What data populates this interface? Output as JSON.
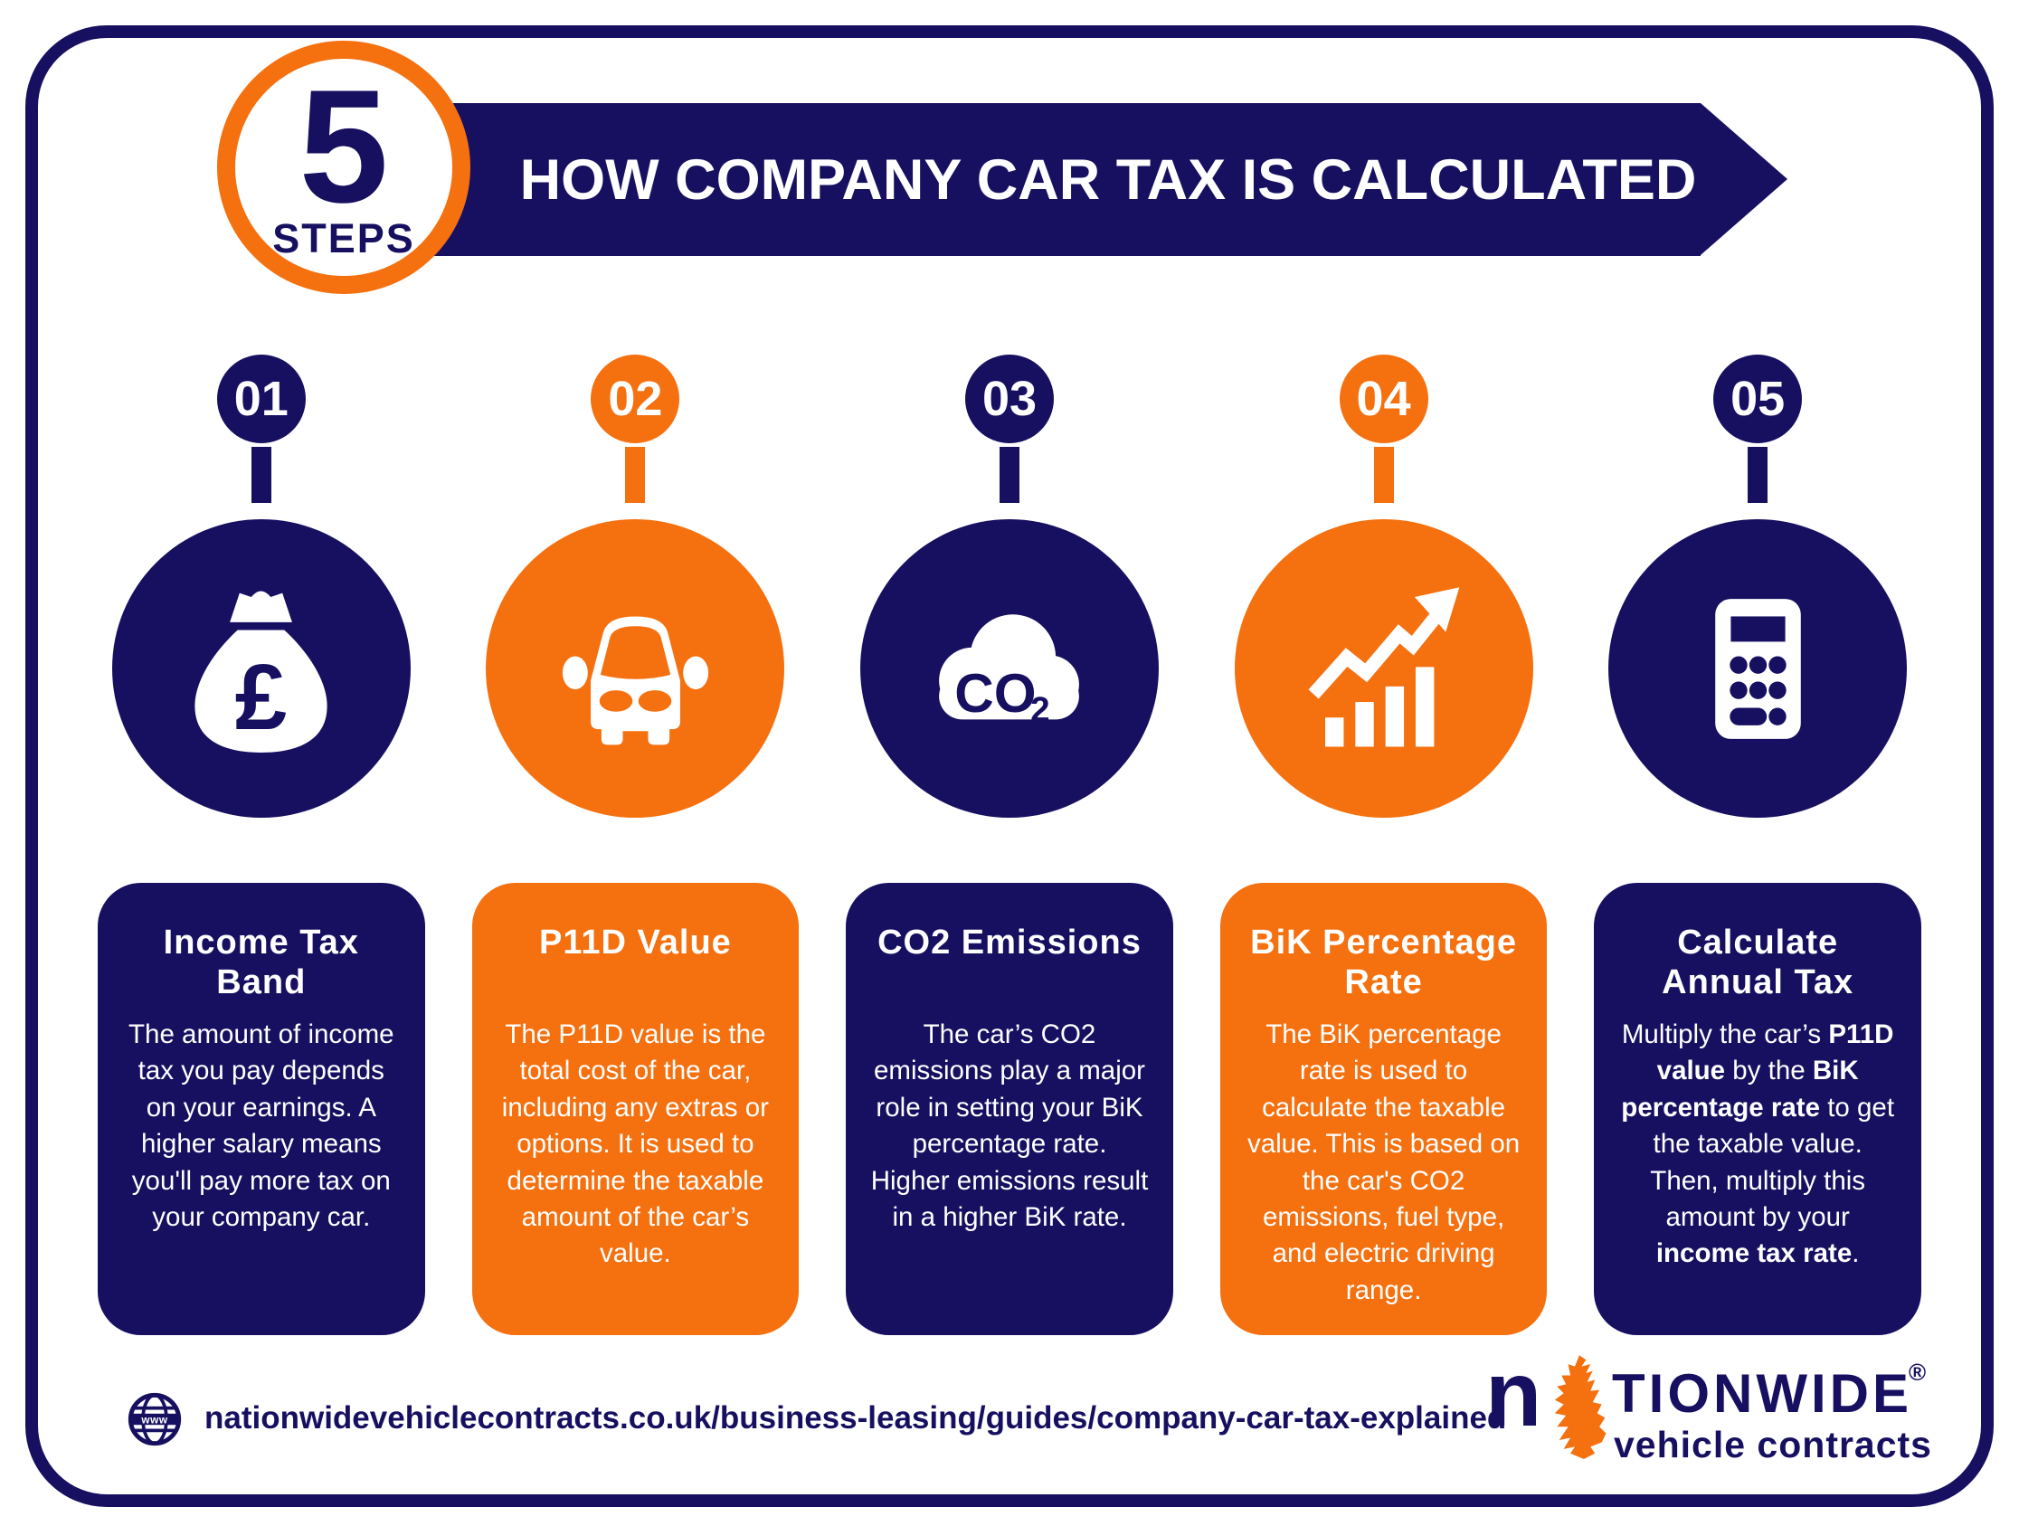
{
  "colors": {
    "navy": "#171061",
    "orange": "#F5700F",
    "white": "#FFFFFF"
  },
  "header": {
    "badge_number": "5",
    "badge_label": "STEPS",
    "title": "HOW COMPANY CAR TAX IS CALCULATED"
  },
  "steps": [
    {
      "number": "01",
      "icon": "money-bag-icon",
      "color": "#171061",
      "title": "Income Tax\nBand",
      "body": "The amount of income tax you pay depends on your earnings. A higher salary means you'll pay more tax on your company car."
    },
    {
      "number": "02",
      "icon": "car-icon",
      "color": "#F5700F",
      "title": "P11D Value",
      "body": "The P11D value is the total cost of the car, including any extras or options. It is used to determine the taxable amount of the car’s value."
    },
    {
      "number": "03",
      "icon": "co2-cloud-icon",
      "color": "#171061",
      "title": "CO2 Emissions",
      "body": "The car’s CO2 emissions play a major role in setting your BiK percentage rate. Higher emissions result in a higher BiK rate."
    },
    {
      "number": "04",
      "icon": "growth-chart-icon",
      "color": "#F5700F",
      "title": "BiK Percentage\nRate",
      "body": "The BiK percentage rate is used to calculate the taxable value. This is based on the car's CO2 emissions, fuel type, and electric driving range."
    },
    {
      "number": "05",
      "icon": "calculator-icon",
      "color": "#171061",
      "title": "Calculate\nAnnual Tax",
      "body_segments": [
        {
          "text": "Multiply the car’s ",
          "bold": false
        },
        {
          "text": "P11D value",
          "bold": true
        },
        {
          "text": " by the ",
          "bold": false
        },
        {
          "text": "BiK percentage rate",
          "bold": true
        },
        {
          "text": " to get the taxable value. Then, multiply this amount by your ",
          "bold": false
        },
        {
          "text": "income tax rate",
          "bold": true
        },
        {
          "text": ".",
          "bold": false
        }
      ]
    }
  ],
  "icon_texts": {
    "pound_symbol": "£",
    "co2_main": "CO",
    "co2_sub": "2",
    "globe_label": "www"
  },
  "footer": {
    "url": "nationwidevehiclecontracts.co.uk/business-leasing/guides/company-car-tax-explained",
    "logo": {
      "prefix": "n",
      "rest": "TIONWIDE",
      "registered": "®",
      "subtitle": "vehicle contracts"
    }
  }
}
